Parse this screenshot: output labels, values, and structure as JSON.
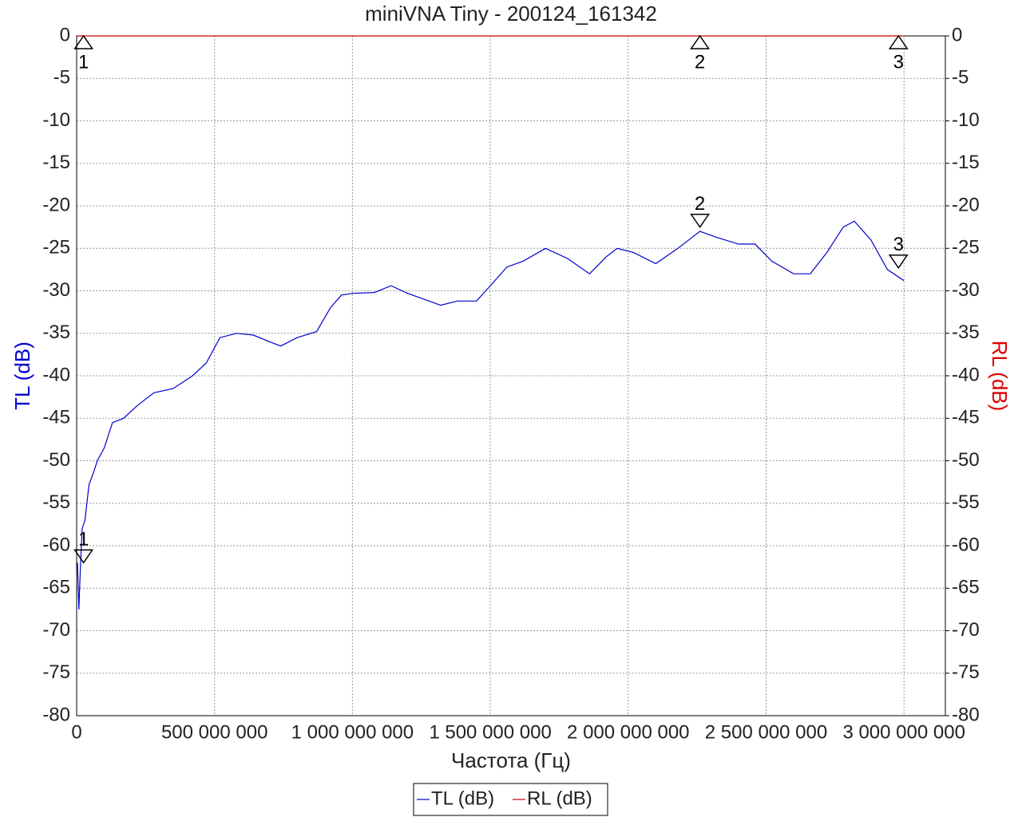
{
  "chart_data": {
    "type": "line",
    "title": "miniVNA Tiny - 200124_161342",
    "x_label": "Частота (Гц)",
    "y_label": "TL (dB)",
    "y2_label": "RL (dB)",
    "xlim": [
      0,
      3150000000
    ],
    "xticks": [
      0,
      {
        "value": 500000000,
        "label": "500 000 000"
      },
      {
        "value": 1000000000,
        "label": "1 000 000 000"
      },
      {
        "value": 1500000000,
        "label": "1 500 000 000"
      },
      {
        "value": 2000000000,
        "label": "2 000 000 000"
      },
      {
        "value": 2500000000,
        "label": "2 500 000 000"
      },
      {
        "value": 3000000000,
        "label": "3 000 000 000"
      }
    ],
    "ylim": [
      -80,
      0
    ],
    "yticks": [
      0,
      -5,
      -10,
      -15,
      -20,
      -25,
      -30,
      -35,
      -40,
      -45,
      -50,
      -55,
      -60,
      -65,
      -70,
      -75,
      -80
    ],
    "y2lim": [
      -80,
      0
    ],
    "y2ticks": [
      0,
      -5,
      -10,
      -15,
      -20,
      -25,
      -30,
      -35,
      -40,
      -45,
      -50,
      -55,
      -60,
      -65,
      -70,
      -75,
      -80
    ],
    "grid": true,
    "x": [
      3000000,
      8000000,
      13000000,
      20000000,
      30000000,
      45000000,
      60000000,
      75000000,
      100000000,
      130000000,
      170000000,
      220000000,
      280000000,
      350000000,
      420000000,
      470000000,
      520000000,
      580000000,
      640000000,
      700000000,
      740000000,
      800000000,
      870000000,
      920000000,
      960000000,
      1000000000,
      1080000000,
      1140000000,
      1200000000,
      1260000000,
      1320000000,
      1380000000,
      1450000000,
      1500000000,
      1560000000,
      1620000000,
      1700000000,
      1780000000,
      1860000000,
      1920000000,
      1960000000,
      2020000000,
      2100000000,
      2180000000,
      2260000000,
      2320000000,
      2400000000,
      2460000000,
      2520000000,
      2600000000,
      2660000000,
      2720000000,
      2780000000,
      2820000000,
      2880000000,
      2940000000,
      3000000000
    ],
    "series": [
      {
        "name": "TL (dB)",
        "color": "#0000cc",
        "values": [
          -62,
          -67.5,
          -63,
          -58,
          -57,
          -52.8,
          -51.5,
          -50,
          -48.5,
          -45.5,
          -45,
          -43.5,
          -42,
          -41.5,
          -40,
          -38.5,
          -35.5,
          -35,
          -35.2,
          -36,
          -36.5,
          -35.5,
          -34.8,
          -32,
          -30.5,
          -30.3,
          -30.2,
          -29.4,
          -30.3,
          -31,
          -31.7,
          -31.2,
          -31.2,
          -29.4,
          -27.2,
          -26.5,
          -25,
          -26.2,
          -28,
          -26,
          -25,
          -25.5,
          -26.8,
          -25,
          -23,
          -23.7,
          -24.5,
          -24.5,
          -26.5,
          -28,
          -28,
          -25.5,
          -22.5,
          -21.8,
          -24,
          -27.5,
          -28.8
        ]
      },
      {
        "name": "RL (dB)",
        "color": "#cc0000",
        "axis": "y2",
        "values": [
          0,
          0,
          0,
          0,
          0,
          0,
          0,
          0,
          0,
          0,
          0,
          0,
          0,
          0,
          0,
          0,
          0,
          0,
          0,
          0,
          0,
          0,
          0,
          0,
          0,
          0,
          0,
          0,
          0,
          0,
          0,
          0,
          0,
          0,
          0,
          0,
          0,
          0,
          0,
          0,
          0,
          0,
          0,
          0,
          0,
          0,
          0,
          0,
          0,
          0,
          0,
          0,
          0,
          0,
          0,
          0,
          0
        ]
      }
    ],
    "markers": [
      {
        "label": "1",
        "x": 25000000,
        "tl": -62,
        "rl": 0
      },
      {
        "label": "2",
        "x": 2260000000,
        "tl": -22.5,
        "rl": 0
      },
      {
        "label": "3",
        "x": 2980000000,
        "tl": -27.3,
        "rl": 0
      }
    ]
  }
}
